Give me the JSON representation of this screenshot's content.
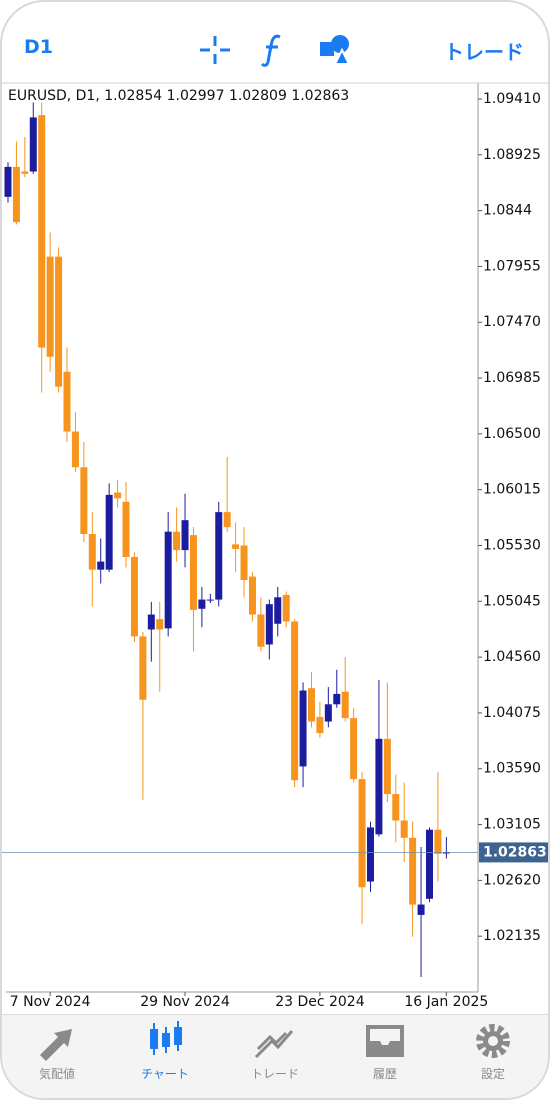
{
  "top_bar": {
    "timeframe": "D1",
    "trade": "トレード"
  },
  "chart_data": {
    "type": "candlestick",
    "info_label": "EURUSD, D1,",
    "categories": [
      null,
      null,
      null,
      null,
      null,
      "7 Nov 2024",
      null,
      null,
      null,
      null,
      null,
      null,
      null,
      null,
      null,
      null,
      null,
      null,
      null,
      null,
      null,
      "29 Nov 2024",
      null,
      null,
      null,
      null,
      null,
      null,
      null,
      null,
      null,
      null,
      null,
      null,
      null,
      null,
      null,
      "23 Dec 2024",
      null,
      null,
      null,
      null,
      null,
      null,
      null,
      null,
      null,
      null,
      null,
      null,
      null,
      null,
      "16 Jan 2025"
    ],
    "open": [
      1.0856,
      1.0882,
      1.0878,
      1.0878,
      1.0927,
      1.0804,
      1.0804,
      1.0704,
      1.0652,
      1.0621,
      1.0563,
      1.0532,
      1.0532,
      1.0599,
      1.0591,
      1.0543,
      1.0474,
      1.048,
      1.0489,
      1.0481,
      1.0565,
      1.0549,
      1.0562,
      1.0498,
      1.0506,
      1.0506,
      1.0582,
      1.0554,
      1.0553,
      1.0526,
      1.0493,
      1.0467,
      1.0485,
      1.051,
      1.0487,
      1.0361,
      1.0429,
      1.0404,
      1.04,
      1.0415,
      1.0426,
      1.0403,
      1.035,
      1.0261,
      1.0302,
      1.0385,
      1.0337,
      1.0314,
      1.0299,
      1.0232,
      1.0246,
      1.0306,
      1.02854
    ],
    "high": [
      1.0886,
      1.0904,
      1.0908,
      1.0938,
      1.0938,
      1.0825,
      1.0812,
      1.0725,
      1.0669,
      1.0643,
      1.0582,
      1.0559,
      1.0607,
      1.061,
      1.0608,
      1.0547,
      1.0478,
      1.0504,
      1.0504,
      1.0582,
      1.0586,
      1.0598,
      1.0569,
      1.0517,
      1.0511,
      1.0591,
      1.063,
      1.0573,
      1.0569,
      1.053,
      1.0508,
      1.0506,
      1.0517,
      1.0513,
      1.0489,
      1.0434,
      1.0443,
      1.0417,
      1.043,
      1.0445,
      1.0456,
      1.0412,
      1.0356,
      1.0313,
      1.0436,
      1.0434,
      1.0354,
      1.0347,
      1.0313,
      1.0291,
      1.0308,
      1.0356,
      1.02997
    ],
    "low": [
      1.0851,
      1.0832,
      1.0873,
      1.0876,
      1.0686,
      1.0704,
      1.0686,
      1.0643,
      1.0617,
      1.0556,
      1.05,
      1.052,
      1.053,
      1.0586,
      1.0534,
      1.0469,
      1.0332,
      1.0452,
      1.0426,
      1.0474,
      1.0539,
      1.0534,
      1.0461,
      1.0482,
      1.0503,
      1.05,
      1.0565,
      1.053,
      1.0508,
      1.0487,
      1.0461,
      1.0454,
      1.0474,
      1.0482,
      1.0343,
      1.0343,
      1.0395,
      1.0386,
      1.0395,
      1.0412,
      1.04,
      1.0347,
      1.0224,
      1.0252,
      1.03,
      1.033,
      1.0295,
      1.0278,
      1.0213,
      1.0178,
      1.0243,
      1.0261,
      1.02809
    ],
    "close": [
      1.0882,
      1.0834,
      1.0876,
      1.0925,
      1.0725,
      1.0717,
      1.0691,
      1.0652,
      1.0621,
      1.0563,
      1.0532,
      1.0539,
      1.0597,
      1.0594,
      1.0543,
      1.0474,
      1.0419,
      1.0493,
      1.048,
      1.0565,
      1.0549,
      1.0575,
      1.0497,
      1.0506,
      1.0506,
      1.0582,
      1.0569,
      1.055,
      1.0523,
      1.0493,
      1.0465,
      1.0502,
      1.0508,
      1.0487,
      1.0349,
      1.0427,
      1.04,
      1.039,
      1.0415,
      1.0424,
      1.0403,
      1.035,
      1.0256,
      1.0308,
      1.0385,
      1.0337,
      1.0314,
      1.0299,
      1.0241,
      1.0241,
      1.0306,
      1.0285,
      1.02863
    ],
    "up_color": "#1c1c9e",
    "down_color": "#f7941d",
    "current_price": 1.02863,
    "ylim": [
      1.0165,
      1.09549
    ],
    "yticks": [
      {
        "value": 1.0941,
        "label": "1.09410"
      },
      1.08925,
      1.0844,
      1.07955,
      {
        "value": 1.0747,
        "label": "1.07470"
      },
      1.06985,
      {
        "value": 1.065,
        "label": "1.06500"
      },
      1.06015,
      {
        "value": 1.0553,
        "label": "1.05530"
      },
      1.05045,
      {
        "value": 1.0456,
        "label": "1.04560"
      },
      1.04075,
      {
        "value": 1.0359,
        "label": "1.03590"
      },
      1.03105,
      {
        "value": 1.0262,
        "label": "1.02620"
      },
      1.02135
    ]
  },
  "tab_bar": {
    "tabs": [
      "気配値",
      "チャート",
      "トレード",
      "履歴",
      "設定"
    ],
    "active": 1
  }
}
